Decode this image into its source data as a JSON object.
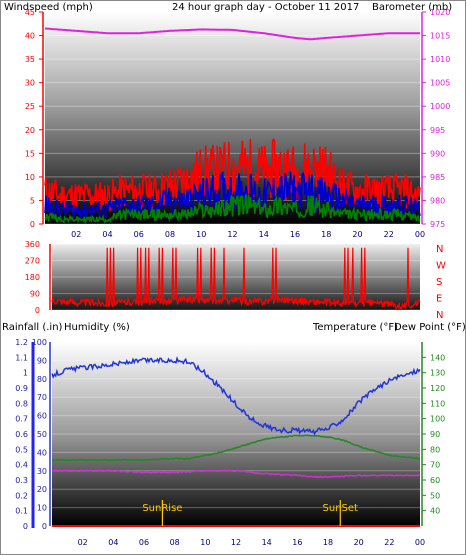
{
  "header": {
    "left_title": "Windspeed (mph)",
    "center_title": "24 hour graph day - October 11 2017",
    "right_title": "Barometer (mb)"
  },
  "colors": {
    "wind_gust": "#ff0000",
    "wind_avg": "#0000cc",
    "wind_low": "#008000",
    "barometer": "#dd22dd",
    "direction": "#ff0000",
    "humidity": "#2233dd",
    "temperature": "#228822",
    "dew_point": "#cc33cc",
    "title_wind": "#ff0000",
    "title_center": "#ffcc00",
    "title_baro": "#cc00cc",
    "sun_marker": "#ffcc00",
    "rain_axis": "#2222ff"
  },
  "labels": {
    "rainfall": "Rainfall (.in)",
    "humidity": "Humidity (%)",
    "temperature": "Temperature (°F)",
    "dew_point": "Dew Point (°F)",
    "sunrise": "SunRise",
    "sunset": "SunSet",
    "compass": [
      "N",
      "W",
      "S",
      "E",
      "N"
    ]
  },
  "x_ticks": [
    "02",
    "04",
    "06",
    "08",
    "10",
    "12",
    "14",
    "16",
    "18",
    "20",
    "22",
    "00"
  ],
  "chart_data": [
    {
      "type": "line",
      "name": "wind-barometer",
      "x_range_hours": [
        0,
        24
      ],
      "y_left": {
        "label": "Windspeed (mph)",
        "range": [
          0,
          45
        ],
        "ticks": [
          0,
          5,
          10,
          15,
          20,
          25,
          30,
          35,
          40,
          45
        ]
      },
      "y_right": {
        "label": "Barometer (mb)",
        "range": [
          975,
          1020
        ],
        "ticks": [
          975,
          980,
          985,
          990,
          995,
          1000,
          1005,
          1010,
          1015,
          1020
        ]
      },
      "series": [
        {
          "key": "gust",
          "axis": "left",
          "x": [
            0,
            1,
            2,
            3,
            4,
            5,
            6,
            7,
            8,
            9,
            10,
            11,
            12,
            13,
            14,
            15,
            16,
            17,
            18,
            19,
            20,
            21,
            22,
            23,
            24
          ],
          "values": [
            7,
            6,
            6,
            6,
            6,
            7,
            7,
            7,
            8,
            9,
            11,
            11,
            12,
            12,
            11,
            12,
            11,
            12,
            11,
            8,
            7,
            7,
            7,
            7,
            6
          ]
        },
        {
          "key": "avg",
          "axis": "left",
          "x": [
            0,
            1,
            2,
            3,
            4,
            5,
            6,
            7,
            8,
            9,
            10,
            11,
            12,
            13,
            14,
            15,
            16,
            17,
            18,
            19,
            20,
            21,
            22,
            23,
            24
          ],
          "values": [
            4,
            3,
            3,
            3,
            3,
            4,
            4,
            4,
            5,
            5,
            6,
            7,
            7,
            7,
            6,
            7,
            7,
            7,
            6,
            5,
            4,
            4,
            4,
            4,
            3
          ]
        },
        {
          "key": "low",
          "axis": "left",
          "x": [
            0,
            1,
            2,
            3,
            4,
            5,
            6,
            7,
            8,
            9,
            10,
            11,
            12,
            13,
            14,
            15,
            16,
            17,
            18,
            19,
            20,
            21,
            22,
            23,
            24
          ],
          "values": [
            2,
            1,
            1,
            1,
            1,
            2,
            2,
            2,
            2,
            2,
            3,
            3,
            4,
            4,
            3,
            4,
            3,
            4,
            3,
            2,
            2,
            2,
            2,
            2,
            1
          ]
        },
        {
          "key": "barometer",
          "axis": "right",
          "x": [
            0,
            2,
            4,
            6,
            8,
            10,
            12,
            14,
            16,
            17,
            18,
            20,
            22,
            24
          ],
          "values": [
            1016.5,
            1016,
            1015.5,
            1015.5,
            1016,
            1016.3,
            1016.2,
            1015.5,
            1014.5,
            1014.2,
            1014.5,
            1015,
            1015.5,
            1015.5
          ]
        }
      ],
      "ylabel_left": "Windspeed (mph)",
      "ylabel_right": "Barometer (mb)"
    },
    {
      "type": "line",
      "name": "wind-direction",
      "x_range_hours": [
        0,
        24
      ],
      "y_left": {
        "range": [
          0,
          360
        ],
        "ticks": [
          0,
          90,
          180,
          270,
          360
        ]
      },
      "y_right_labels": [
        "N",
        "W",
        "S",
        "E",
        "N"
      ],
      "series": [
        {
          "key": "direction",
          "x": [
            0,
            1,
            2,
            3,
            4,
            5,
            6,
            7,
            8,
            9,
            10,
            11,
            12,
            13,
            14,
            15,
            16,
            17,
            18,
            19,
            20,
            21,
            22,
            23,
            24
          ],
          "values": [
            55,
            45,
            40,
            40,
            35,
            45,
            40,
            45,
            50,
            60,
            50,
            50,
            55,
            45,
            50,
            60,
            50,
            45,
            40,
            35,
            35,
            40,
            30,
            25,
            35
          ]
        }
      ]
    },
    {
      "type": "line",
      "name": "temp-humidity",
      "x_range_hours": [
        0,
        24
      ],
      "y_left_rain": {
        "label": "Rainfall (.in)",
        "range": [
          0,
          1.2
        ],
        "ticks": [
          0,
          0.1,
          0.2,
          0.3,
          0.4,
          0.5,
          0.6,
          0.7,
          0.8,
          0.9,
          1,
          1.1,
          1.2
        ]
      },
      "y_left_humidity": {
        "label": "Humidity (%)",
        "range": [
          0,
          100
        ],
        "ticks": [
          0,
          10,
          20,
          30,
          40,
          50,
          60,
          70,
          80,
          90,
          100
        ]
      },
      "y_right": {
        "label": "Temperature (°F)",
        "range": [
          30,
          150
        ],
        "ticks": [
          40,
          50,
          60,
          70,
          80,
          90,
          100,
          110,
          120,
          130,
          140
        ]
      },
      "series": [
        {
          "key": "humidity",
          "axis": "humidity",
          "x": [
            0,
            1,
            2,
            3,
            4,
            5,
            6,
            7,
            8,
            9,
            10,
            11,
            12,
            13,
            14,
            15,
            16,
            17,
            18,
            19,
            20,
            21,
            22,
            23,
            24
          ],
          "values": [
            82,
            85,
            86,
            87,
            88,
            89,
            90,
            90,
            90,
            89,
            83,
            75,
            66,
            58,
            54,
            52,
            52,
            51,
            53,
            58,
            67,
            74,
            79,
            82,
            85
          ]
        },
        {
          "key": "temperature",
          "axis": "right",
          "x": [
            0,
            2,
            4,
            6,
            8,
            9,
            10,
            11,
            12,
            13,
            14,
            15,
            16,
            17,
            18,
            19,
            20,
            21,
            22,
            23,
            24
          ],
          "values": [
            73,
            73,
            73,
            73,
            74,
            74,
            76,
            78,
            81,
            84,
            87,
            88,
            89,
            89,
            88,
            86,
            82,
            79,
            76,
            75,
            74
          ]
        },
        {
          "key": "dew_point",
          "axis": "right",
          "x": [
            0,
            2,
            4,
            6,
            8,
            10,
            12,
            14,
            16,
            17,
            18,
            20,
            22,
            24
          ],
          "values": [
            66,
            66,
            66,
            65,
            65,
            66,
            66,
            64,
            63,
            62,
            62,
            63,
            63,
            63
          ]
        },
        {
          "key": "rain",
          "axis": "rain",
          "x": [
            0,
            24
          ],
          "values": [
            0,
            0
          ]
        }
      ],
      "markers": [
        {
          "label": "SunRise",
          "hour": 7.2
        },
        {
          "label": "SunSet",
          "hour": 18.8
        }
      ]
    }
  ]
}
